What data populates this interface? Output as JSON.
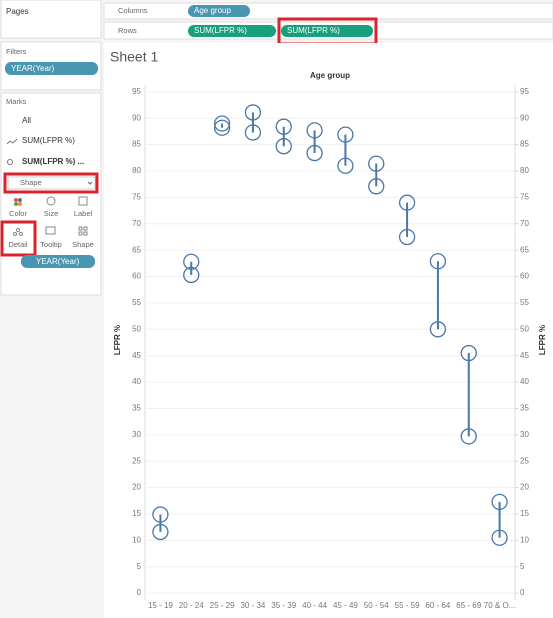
{
  "ui": {
    "pages": "Pages",
    "columns": "Columns",
    "rows": "Rows",
    "columns_pill": "Age group",
    "rows_pills": [
      "SUM(LFPR %)",
      "SUM(LFPR %)"
    ],
    "filters": "Filters",
    "filter_pill": "YEAR(Year)",
    "marks": "Marks",
    "marks_cards": [
      "All",
      "SUM(LFPR %)",
      "SUM(LFPR %) ..."
    ],
    "mark_type": "Shape",
    "buttons": [
      "Color",
      "Size",
      "Label",
      "Detail",
      "Tooltip",
      "Shape"
    ],
    "detail_pill": "YEAR(Year)"
  },
  "chart_data": {
    "type": "dumbbell",
    "title": "Sheet 1",
    "header": "Age group",
    "y_label": "LFPR %",
    "y2_label": "LFPR %",
    "categories": [
      "15 - 19",
      "20 - 24",
      "25 - 29",
      "30 - 34",
      "35 - 39",
      "40 - 44",
      "45 - 49",
      "50 - 54",
      "55 - 59",
      "60 - 64",
      "65 - 69",
      "70 & O..."
    ],
    "series": [
      {
        "color": "#4a76a8",
        "values": [
          14.9,
          62.8,
          89.0,
          91.1,
          88.4,
          87.7,
          86.9,
          81.4,
          74.0,
          62.9,
          45.5,
          17.3
        ]
      },
      {
        "color": "#4a76a8",
        "axis": "y2",
        "values": [
          11.6,
          60.3,
          88.2,
          87.3,
          84.7,
          83.4,
          81.0,
          77.1,
          67.5,
          50.0,
          29.7,
          10.5
        ]
      }
    ],
    "ylim": [
      -1.3,
      96.3
    ],
    "yticks": [
      0,
      5,
      10,
      15,
      20,
      25,
      30,
      35,
      40,
      45,
      50,
      55,
      60,
      65,
      70,
      75,
      80,
      85,
      90,
      95
    ],
    "y2lim": [
      -1.3,
      96.3
    ],
    "y2ticks": [
      0,
      5,
      10,
      15,
      20,
      25,
      30,
      35,
      40,
      45,
      50,
      55,
      60,
      65,
      70,
      75,
      80,
      85,
      90,
      95
    ],
    "grid": true
  }
}
